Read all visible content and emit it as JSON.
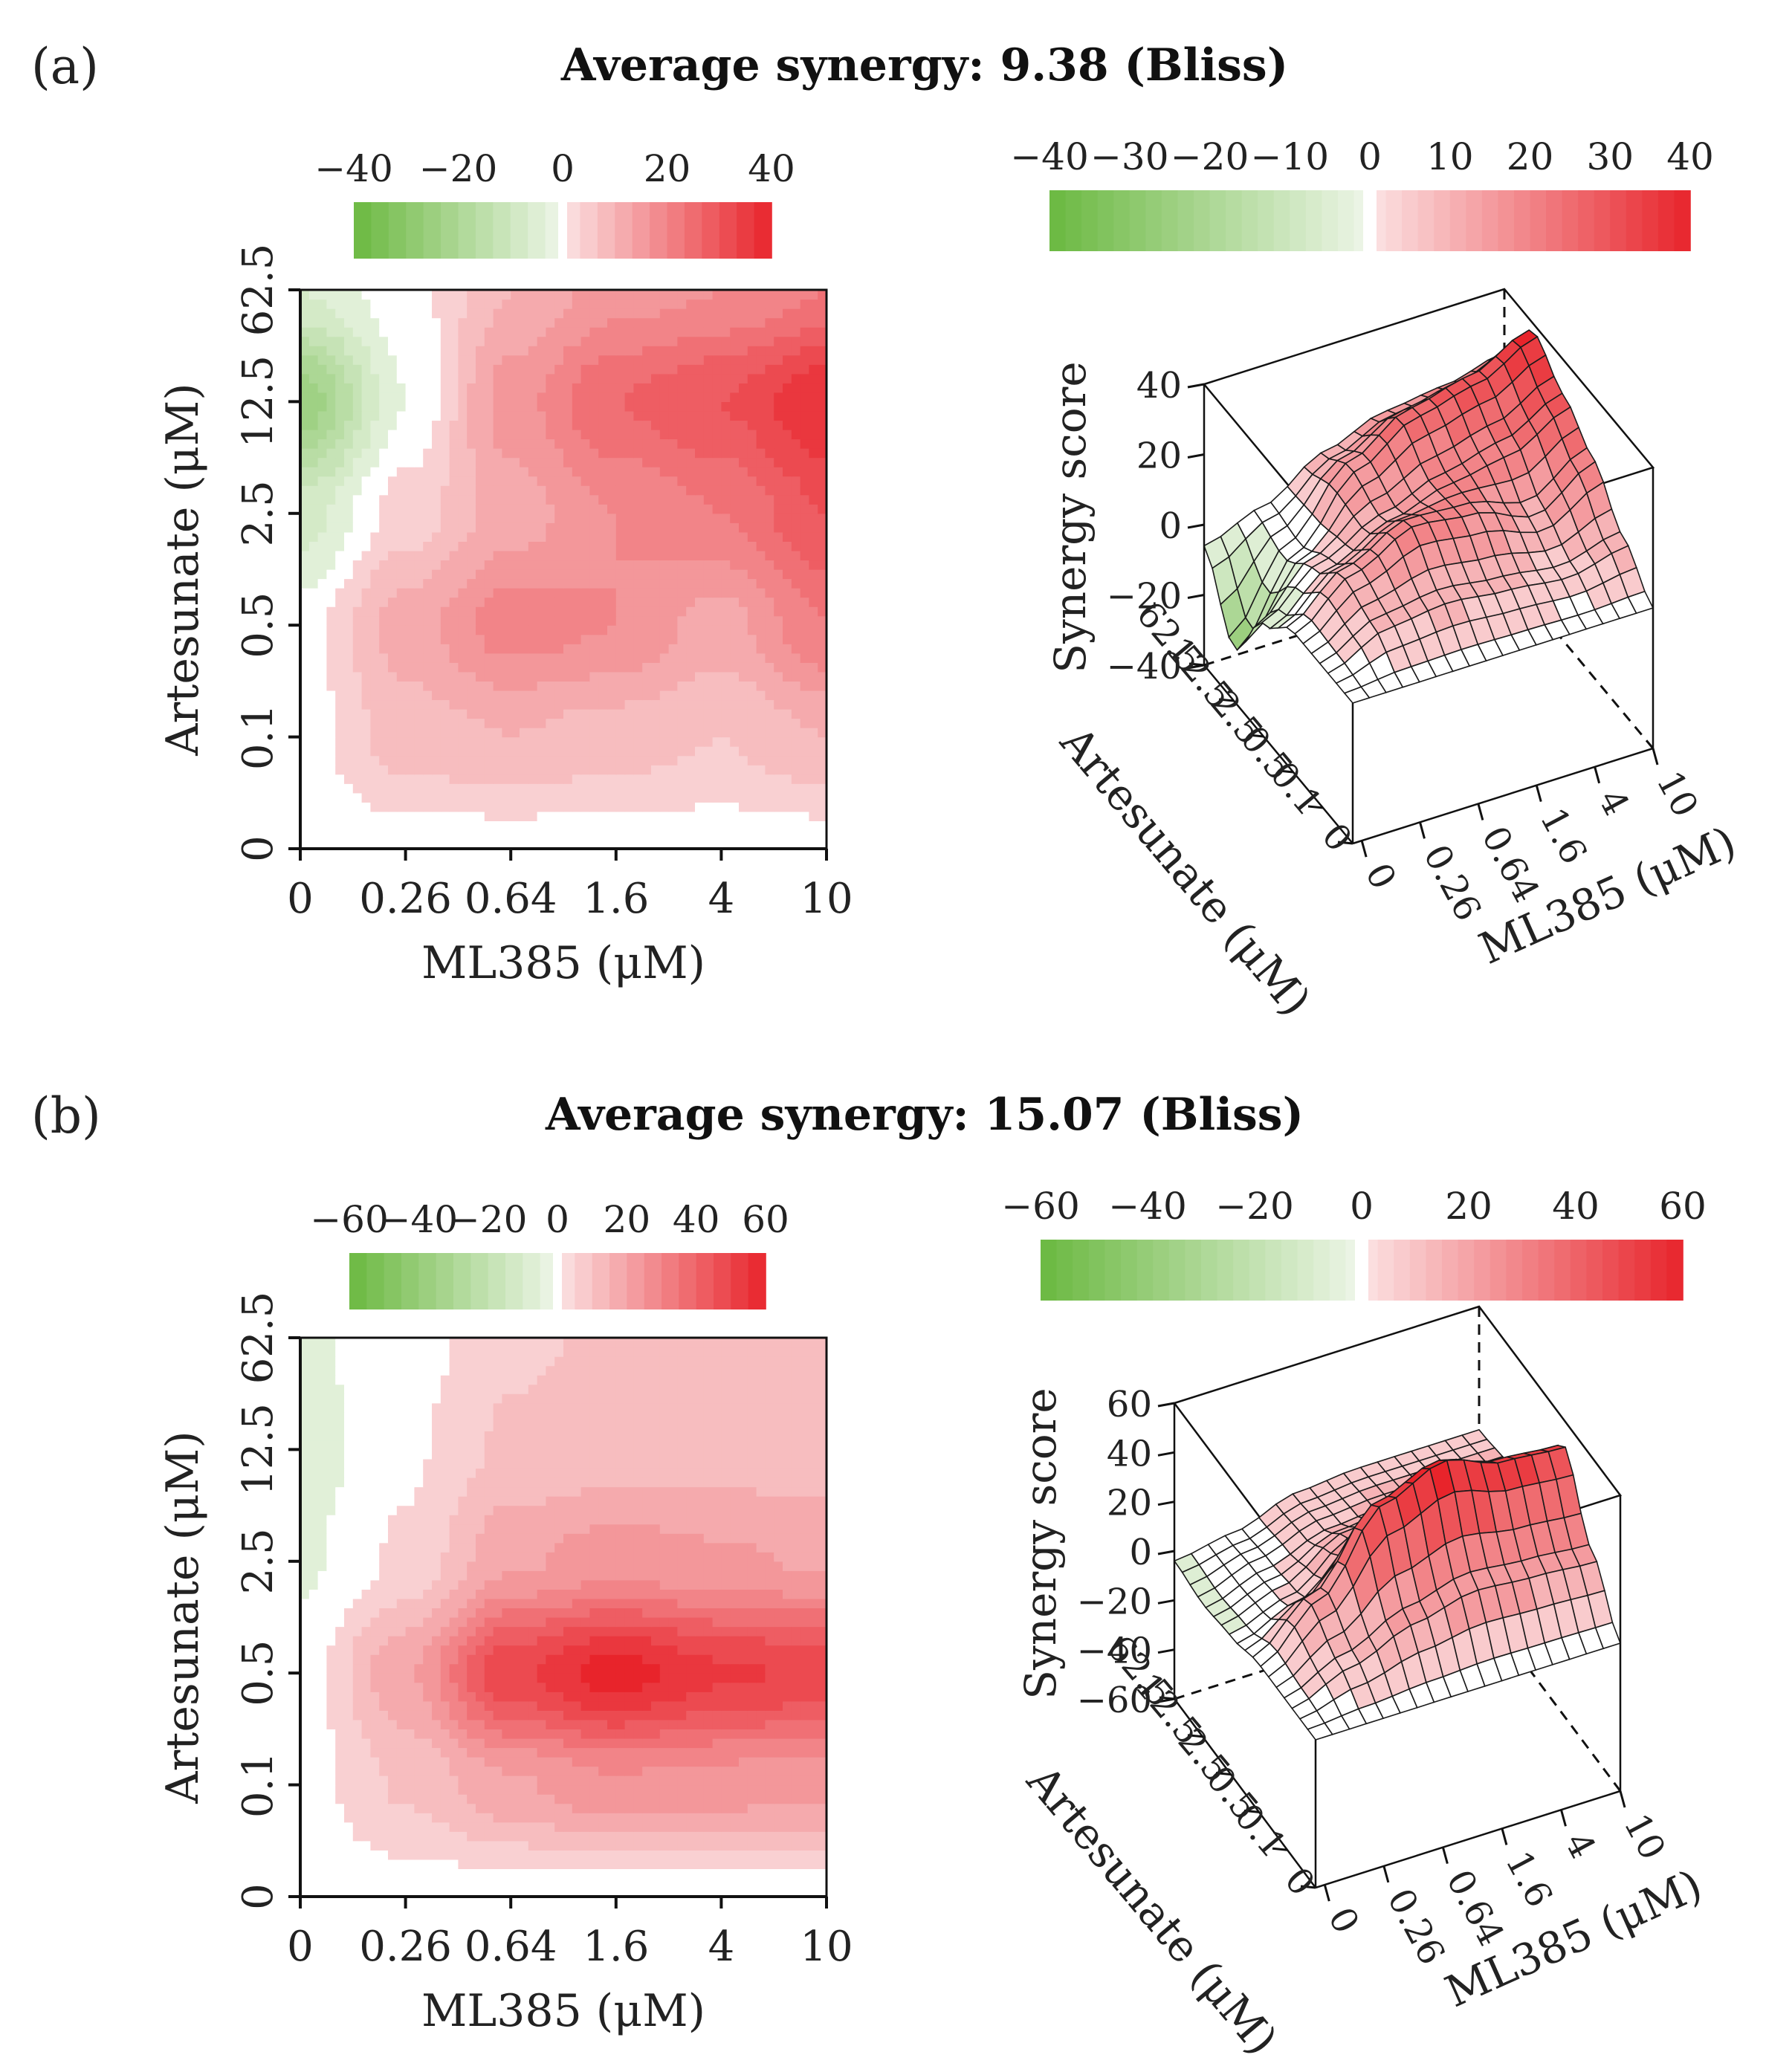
{
  "panels": [
    {
      "label": "(a)",
      "title": "Average synergy: 9.38 (Bliss)"
    },
    {
      "label": "(b)",
      "title": "Average synergy: 15.07 (Bliss)"
    }
  ],
  "colors": {
    "negative": "#6ab840",
    "zero": "#ffffff",
    "positive": "#e8242b",
    "neg_light": "#eef6e9",
    "pos_light": "#fbe3e4"
  },
  "chart_data": [
    {
      "type": "heatmap",
      "title": "Average synergy: 9.38 (Bliss)",
      "xlabel": "ML385 (μM)",
      "ylabel": "Artesunate (μM)",
      "x_ticks": [
        "0",
        "0.26",
        "0.64",
        "1.6",
        "4",
        "10"
      ],
      "y_ticks": [
        "0",
        "0.1",
        "0.5",
        "2.5",
        "12.5",
        "62.5"
      ],
      "colorbar_ticks": [
        "−40",
        "−20",
        "0",
        "20",
        "40"
      ],
      "colorbar_range": [
        -40,
        40
      ],
      "grid": [
        [
          0,
          0,
          0,
          0,
          0,
          0
        ],
        [
          0,
          8,
          10,
          8,
          6,
          10
        ],
        [
          0,
          12,
          20,
          18,
          12,
          22
        ],
        [
          -8,
          4,
          12,
          18,
          22,
          30
        ],
        [
          -25,
          -2,
          16,
          26,
          30,
          38
        ],
        [
          -6,
          0,
          10,
          16,
          18,
          22
        ]
      ],
      "surface": {
        "zlabel": "Synergy score",
        "z_ticks": [
          "−40",
          "−20",
          "0",
          "20",
          "40"
        ],
        "z_range": [
          -40,
          40
        ],
        "x_ticks": [
          "0",
          "0.26",
          "0.64",
          "1.6",
          "4",
          "10"
        ],
        "y_ticks": [
          "0",
          "0.1",
          "0.5",
          "2.5",
          "12.5",
          "62.5"
        ],
        "xlabel": "ML385 (μM)",
        "ylabel": "Artesunate (μM)",
        "colorbar_ticks": [
          "−40",
          "−30",
          "−20",
          "−10",
          "0",
          "10",
          "20",
          "30",
          "40"
        ]
      }
    },
    {
      "type": "heatmap",
      "title": "Average synergy: 15.07 (Bliss)",
      "xlabel": "ML385 (μM)",
      "ylabel": "Artesunate (μM)",
      "x_ticks": [
        "0",
        "0.26",
        "0.64",
        "1.6",
        "4",
        "10"
      ],
      "y_ticks": [
        "0",
        "0.1",
        "0.5",
        "2.5",
        "12.5",
        "62.5"
      ],
      "colorbar_ticks": [
        "−60",
        "−40",
        "−20",
        "0",
        "20",
        "40",
        "60"
      ],
      "colorbar_range": [
        -60,
        60
      ],
      "grid": [
        [
          0,
          0,
          0,
          0,
          0,
          0
        ],
        [
          0,
          10,
          20,
          26,
          24,
          22
        ],
        [
          0,
          20,
          50,
          60,
          52,
          50
        ],
        [
          -4,
          4,
          20,
          24,
          22,
          20
        ],
        [
          -6,
          2,
          10,
          12,
          12,
          12
        ],
        [
          -4,
          0,
          8,
          10,
          10,
          10
        ]
      ],
      "surface": {
        "zlabel": "Synergy score",
        "z_ticks": [
          "−60",
          "−40",
          "−20",
          "0",
          "20",
          "40",
          "60"
        ],
        "z_range": [
          -60,
          60
        ],
        "x_ticks": [
          "0",
          "0.26",
          "0.64",
          "1.6",
          "4",
          "10"
        ],
        "y_ticks": [
          "0",
          "0.1",
          "0.5",
          "2.5",
          "12.5",
          "62.5"
        ],
        "xlabel": "ML385 (μM)",
        "ylabel": "Artesunate (μM)",
        "colorbar_ticks": [
          "−60",
          "−40",
          "−20",
          "0",
          "20",
          "40",
          "60"
        ]
      }
    }
  ]
}
